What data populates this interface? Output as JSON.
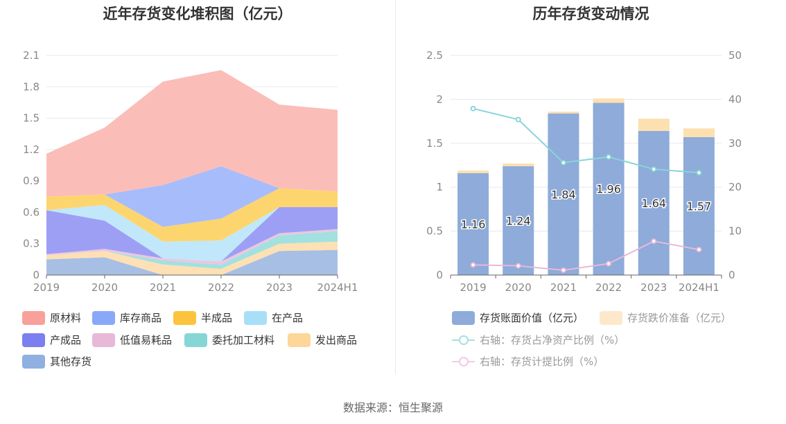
{
  "source": "数据来源：恒生聚源",
  "left_chart": {
    "title": "近年存货变化堆积图（亿元）",
    "legend": [
      {
        "label": "原材料",
        "color": "#f7a19a"
      },
      {
        "label": "库存商品",
        "color": "#8aa8f8"
      },
      {
        "label": "半成品",
        "color": "#fcc43e"
      },
      {
        "label": "在产品",
        "color": "#a8dff8"
      },
      {
        "label": "产成品",
        "color": "#7b7fef"
      },
      {
        "label": "低值易耗品",
        "color": "#e8b8d8"
      },
      {
        "label": "委托加工材料",
        "color": "#86d6d6"
      },
      {
        "label": "发出商品",
        "color": "#fdd69a"
      },
      {
        "label": "其他存货",
        "color": "#8fb0e0"
      }
    ]
  },
  "right_chart": {
    "title": "历年存货变动情况",
    "legend": [
      {
        "label": "存货账面价值（亿元）",
        "color": "#8eabd9"
      },
      {
        "label": "存货跌价准备（亿元）",
        "color": "#fde2b8"
      },
      {
        "label": "右轴：存货占净资产比例（%）",
        "color": "#8ad4d8"
      },
      {
        "label": "右轴：存货计提比例（%）",
        "color": "#e8b8d8"
      }
    ]
  },
  "chart_data": [
    {
      "type": "area",
      "stacked": true,
      "title": "近年存货变化堆积图（亿元）",
      "categories": [
        "2019",
        "2020",
        "2021",
        "2022",
        "2023",
        "2024H1"
      ],
      "ylim": [
        0,
        2.1
      ],
      "yticks": [
        "0",
        "0.3",
        "0.6",
        "0.9",
        "1.2",
        "1.5",
        "1.8",
        "2.1"
      ],
      "series": [
        {
          "name": "其他存货",
          "color": "#a7bfe4",
          "values": [
            0.15,
            0.17,
            0.0,
            0.0,
            0.23,
            0.24
          ]
        },
        {
          "name": "发出商品",
          "color": "#fde0b4",
          "values": [
            0.04,
            0.06,
            0.1,
            0.06,
            0.07,
            0.08
          ]
        },
        {
          "name": "委托加工材料",
          "color": "#a3e0e0",
          "values": [
            0.0,
            0.0,
            0.04,
            0.04,
            0.08,
            0.1
          ]
        },
        {
          "name": "低值易耗品",
          "color": "#ecc6e0",
          "values": [
            0.01,
            0.02,
            0.02,
            0.03,
            0.02,
            0.02
          ]
        },
        {
          "name": "产成品",
          "color": "#9d9ff4",
          "values": [
            0.42,
            0.27,
            0.0,
            0.0,
            0.25,
            0.21
          ]
        },
        {
          "name": "在产品",
          "color": "#c0e8fa",
          "values": [
            0.0,
            0.15,
            0.16,
            0.2,
            0.0,
            0.0
          ]
        },
        {
          "name": "半成品",
          "color": "#fdd56f",
          "values": [
            0.13,
            0.1,
            0.14,
            0.21,
            0.18,
            0.15
          ]
        },
        {
          "name": "库存商品",
          "color": "#a7bcfb",
          "values": [
            0.0,
            0.0,
            0.4,
            0.5,
            0.0,
            0.0
          ]
        },
        {
          "name": "原材料",
          "color": "#fbbdb8",
          "values": [
            0.41,
            0.64,
            0.99,
            0.92,
            0.8,
            0.78
          ]
        }
      ]
    },
    {
      "type": "bar",
      "stacked": true,
      "title": "历年存货变动情况",
      "categories": [
        "2019",
        "2020",
        "2021",
        "2022",
        "2023",
        "2024H1"
      ],
      "ylim": [
        0,
        2.5
      ],
      "yticks": [
        "0",
        "0.5",
        "1",
        "1.5",
        "2",
        "2.5"
      ],
      "y2lim": [
        0,
        50
      ],
      "y2ticks": [
        "0",
        "10",
        "20",
        "30",
        "40",
        "50"
      ],
      "series": [
        {
          "name": "存货账面价值（亿元）",
          "color": "#8eabd9",
          "values": [
            1.16,
            1.24,
            1.84,
            1.96,
            1.64,
            1.57
          ],
          "labels": [
            "1.16",
            "1.24",
            "1.84",
            "1.96",
            "1.64",
            "1.57"
          ]
        },
        {
          "name": "存货跌价准备（亿元）",
          "color": "#fde0b0",
          "values": [
            0.03,
            0.03,
            0.02,
            0.05,
            0.14,
            0.1
          ]
        }
      ],
      "lines": [
        {
          "name": "右轴：存货占净资产比例（%）",
          "axis": "right",
          "color": "#8ad4d8",
          "values": [
            37.9,
            35.4,
            25.6,
            26.9,
            24.1,
            23.3
          ]
        },
        {
          "name": "右轴：存货计提比例（%）",
          "axis": "right",
          "color": "#e8b8d8",
          "values": [
            2.3,
            2.1,
            1.1,
            2.6,
            7.7,
            5.8
          ]
        }
      ]
    }
  ]
}
